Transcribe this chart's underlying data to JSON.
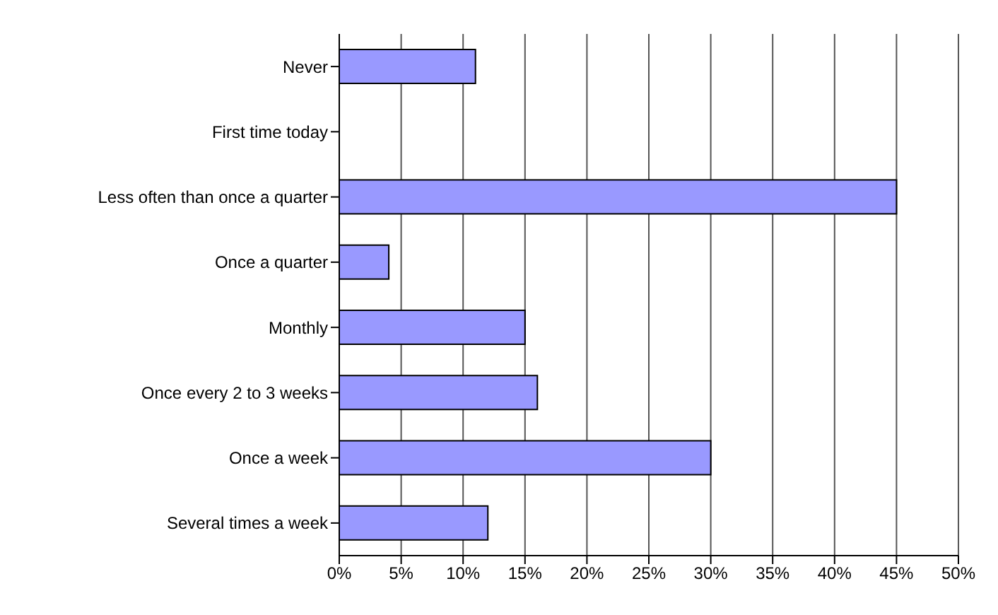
{
  "chart_data": {
    "type": "bar",
    "orientation": "horizontal",
    "categories": [
      "Never",
      "First time today",
      "Less often than once a quarter",
      "Once a quarter",
      "Monthly",
      "Once every 2 to 3 weeks",
      "Once a week",
      "Several times a week"
    ],
    "values": [
      11,
      0,
      45,
      4,
      15,
      16,
      30,
      12
    ],
    "color": "#9999ff",
    "xlim": [
      0,
      50
    ],
    "xticks": [
      {
        "value": 0,
        "label": "0%"
      },
      {
        "value": 5,
        "label": "5%"
      },
      {
        "value": 10,
        "label": "10%"
      },
      {
        "value": 15,
        "label": "15%"
      },
      {
        "value": 20,
        "label": "20%"
      },
      {
        "value": 25,
        "label": "25%"
      },
      {
        "value": 30,
        "label": "30%"
      },
      {
        "value": 35,
        "label": "35%"
      },
      {
        "value": 40,
        "label": "40%"
      },
      {
        "value": 45,
        "label": "45%"
      },
      {
        "value": 50,
        "label": "50%"
      }
    ],
    "grid": "x",
    "legend": false
  }
}
